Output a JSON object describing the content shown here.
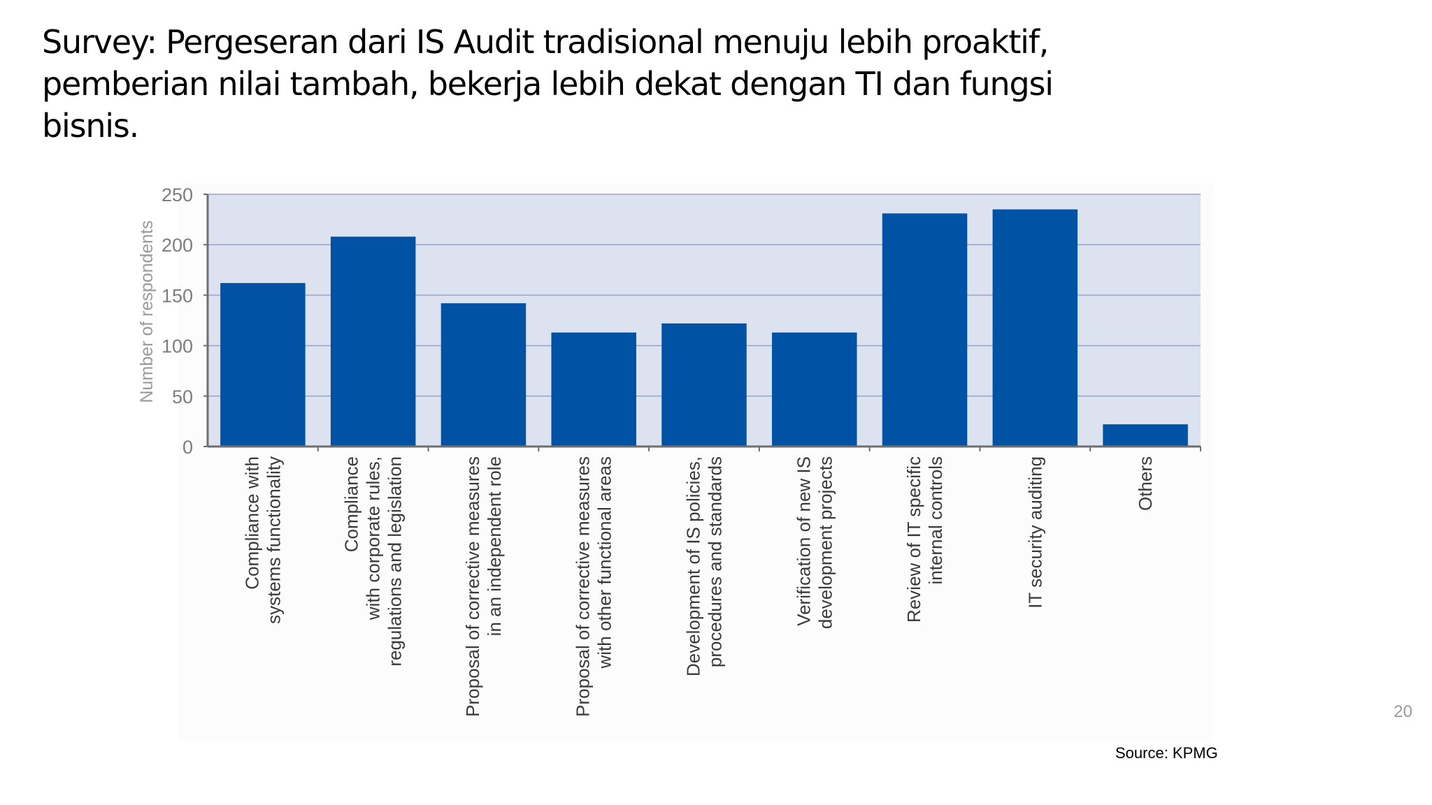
{
  "slide": {
    "title": "Survey: Pergeseran dari IS Audit tradisional menuju lebih proaktif,\npemberian nilai tambah, bekerja lebih dekat dengan TI dan fungsi\nbisnis.",
    "page_number": "20",
    "source": "Source: KPMG"
  },
  "chart_data": {
    "type": "bar",
    "title": "",
    "xlabel": "",
    "ylabel": "Number of respondents",
    "ylim": [
      0,
      250
    ],
    "yticks": [
      0,
      50,
      100,
      150,
      200,
      250
    ],
    "grid": true,
    "categories": [
      [
        "Compliance with",
        "systems functionality"
      ],
      [
        "Compliance",
        "with corporate rules,",
        "regulations and legislation"
      ],
      [
        "Proposal of corrective measures",
        "in an independent role"
      ],
      [
        "Proposal of corrective measures",
        "with other functional areas"
      ],
      [
        "Development of IS policies,",
        "procedures and standards"
      ],
      [
        "Verification of new IS",
        "development projects"
      ],
      [
        "Review of IT specific",
        "internal controls"
      ],
      [
        "IT security auditing"
      ],
      [
        "Others"
      ]
    ],
    "values": [
      162,
      208,
      142,
      113,
      122,
      113,
      231,
      235,
      22
    ],
    "colors": {
      "bar": "#0052a5",
      "plot_background": "#dde2f1",
      "gridline": "#9aa3c2",
      "axis": "#6e6e6e",
      "tick_label": "#7d7d7d",
      "category_label": "#3a3a3a"
    }
  }
}
